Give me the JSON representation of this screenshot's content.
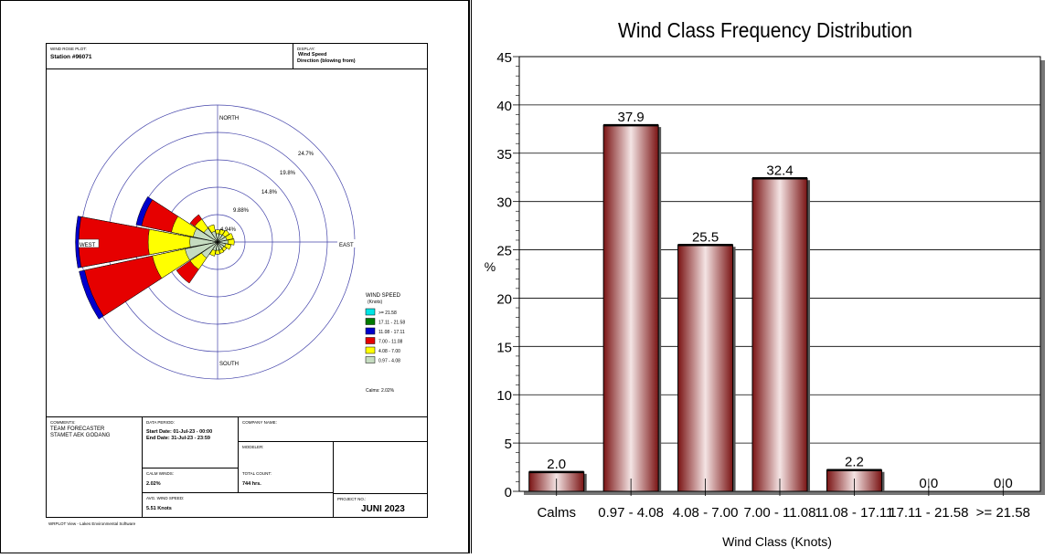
{
  "windrose": {
    "plot_label": "WIND ROSE PLOT:",
    "station": "Station #96071",
    "display_label": "DISPLAY:",
    "display_line1": "Wind Speed",
    "display_line2": "Direction (blowing from)",
    "directions": {
      "north": "NORTH",
      "south": "SOUTH",
      "east": "EAST",
      "west": "WEST"
    },
    "rings": [
      "4.94%",
      "9.88%",
      "14.8%",
      "19.8%",
      "24.7%"
    ],
    "legend_title": "WIND SPEED",
    "legend_unit": "(Knots)",
    "legend": [
      {
        "label": ">= 21.58",
        "color": "#00e5e5"
      },
      {
        "label": "17.11 - 21.58",
        "color": "#007a00"
      },
      {
        "label": "11.08 - 17.11",
        "color": "#0000cc"
      },
      {
        "label": "7.00 - 11.08",
        "color": "#e60000"
      },
      {
        "label": "4.08 - 7.00",
        "color": "#ffff00"
      },
      {
        "label": "0.97 - 4.08",
        "color": "#c5dcc0"
      }
    ],
    "calms": "Calms: 2.02%",
    "comments_label": "COMMENTS:",
    "comments_line1": "TEAM FORECASTER",
    "comments_line2": "STAMET AEK GODANG",
    "period_label": "DATA PERIOD:",
    "start_date": "Start Date: 01-Jul-23 - 00:00",
    "end_date": "End Date: 31-Jul-23 - 23:59",
    "company_label": "COMPANY NAME:",
    "modeler_label": "MODELER:",
    "calm_winds_label": "CALM WINDS:",
    "calm_winds": "2.02%",
    "total_count_label": "TOTAL COUNT:",
    "total_count": "744 hrs.",
    "avg_speed_label": "AVG. WIND SPEED:",
    "avg_speed": "5.51 Knots",
    "project_label": "PROJECT NO.:",
    "project": "JUNI 2023",
    "software": "WRPLOT View - Lakes Environmental Software"
  },
  "chart_data": {
    "type": "bar",
    "title": "Wind Class Frequency Distribution",
    "xlabel": "Wind Class (Knots)",
    "ylabel": "%",
    "categories": [
      "Calms",
      "0.97 - 4.08",
      "4.08 - 7.00",
      "7.00 - 11.08",
      "11.08 - 17.11",
      "17.11 - 21.58",
      ">= 21.58"
    ],
    "values": [
      2.0,
      37.9,
      25.5,
      32.4,
      2.2,
      0.0,
      0.0
    ],
    "value_labels": [
      "2.0",
      "37.9",
      "25.5",
      "32.4",
      "2.2",
      "0.0",
      "0.0"
    ],
    "ylim": [
      0,
      45
    ],
    "yticks": [
      "0",
      "5",
      "10",
      "15",
      "20",
      "25",
      "30",
      "35",
      "40",
      "45"
    ],
    "grid": true,
    "bar_color": "#8b1a1a"
  }
}
